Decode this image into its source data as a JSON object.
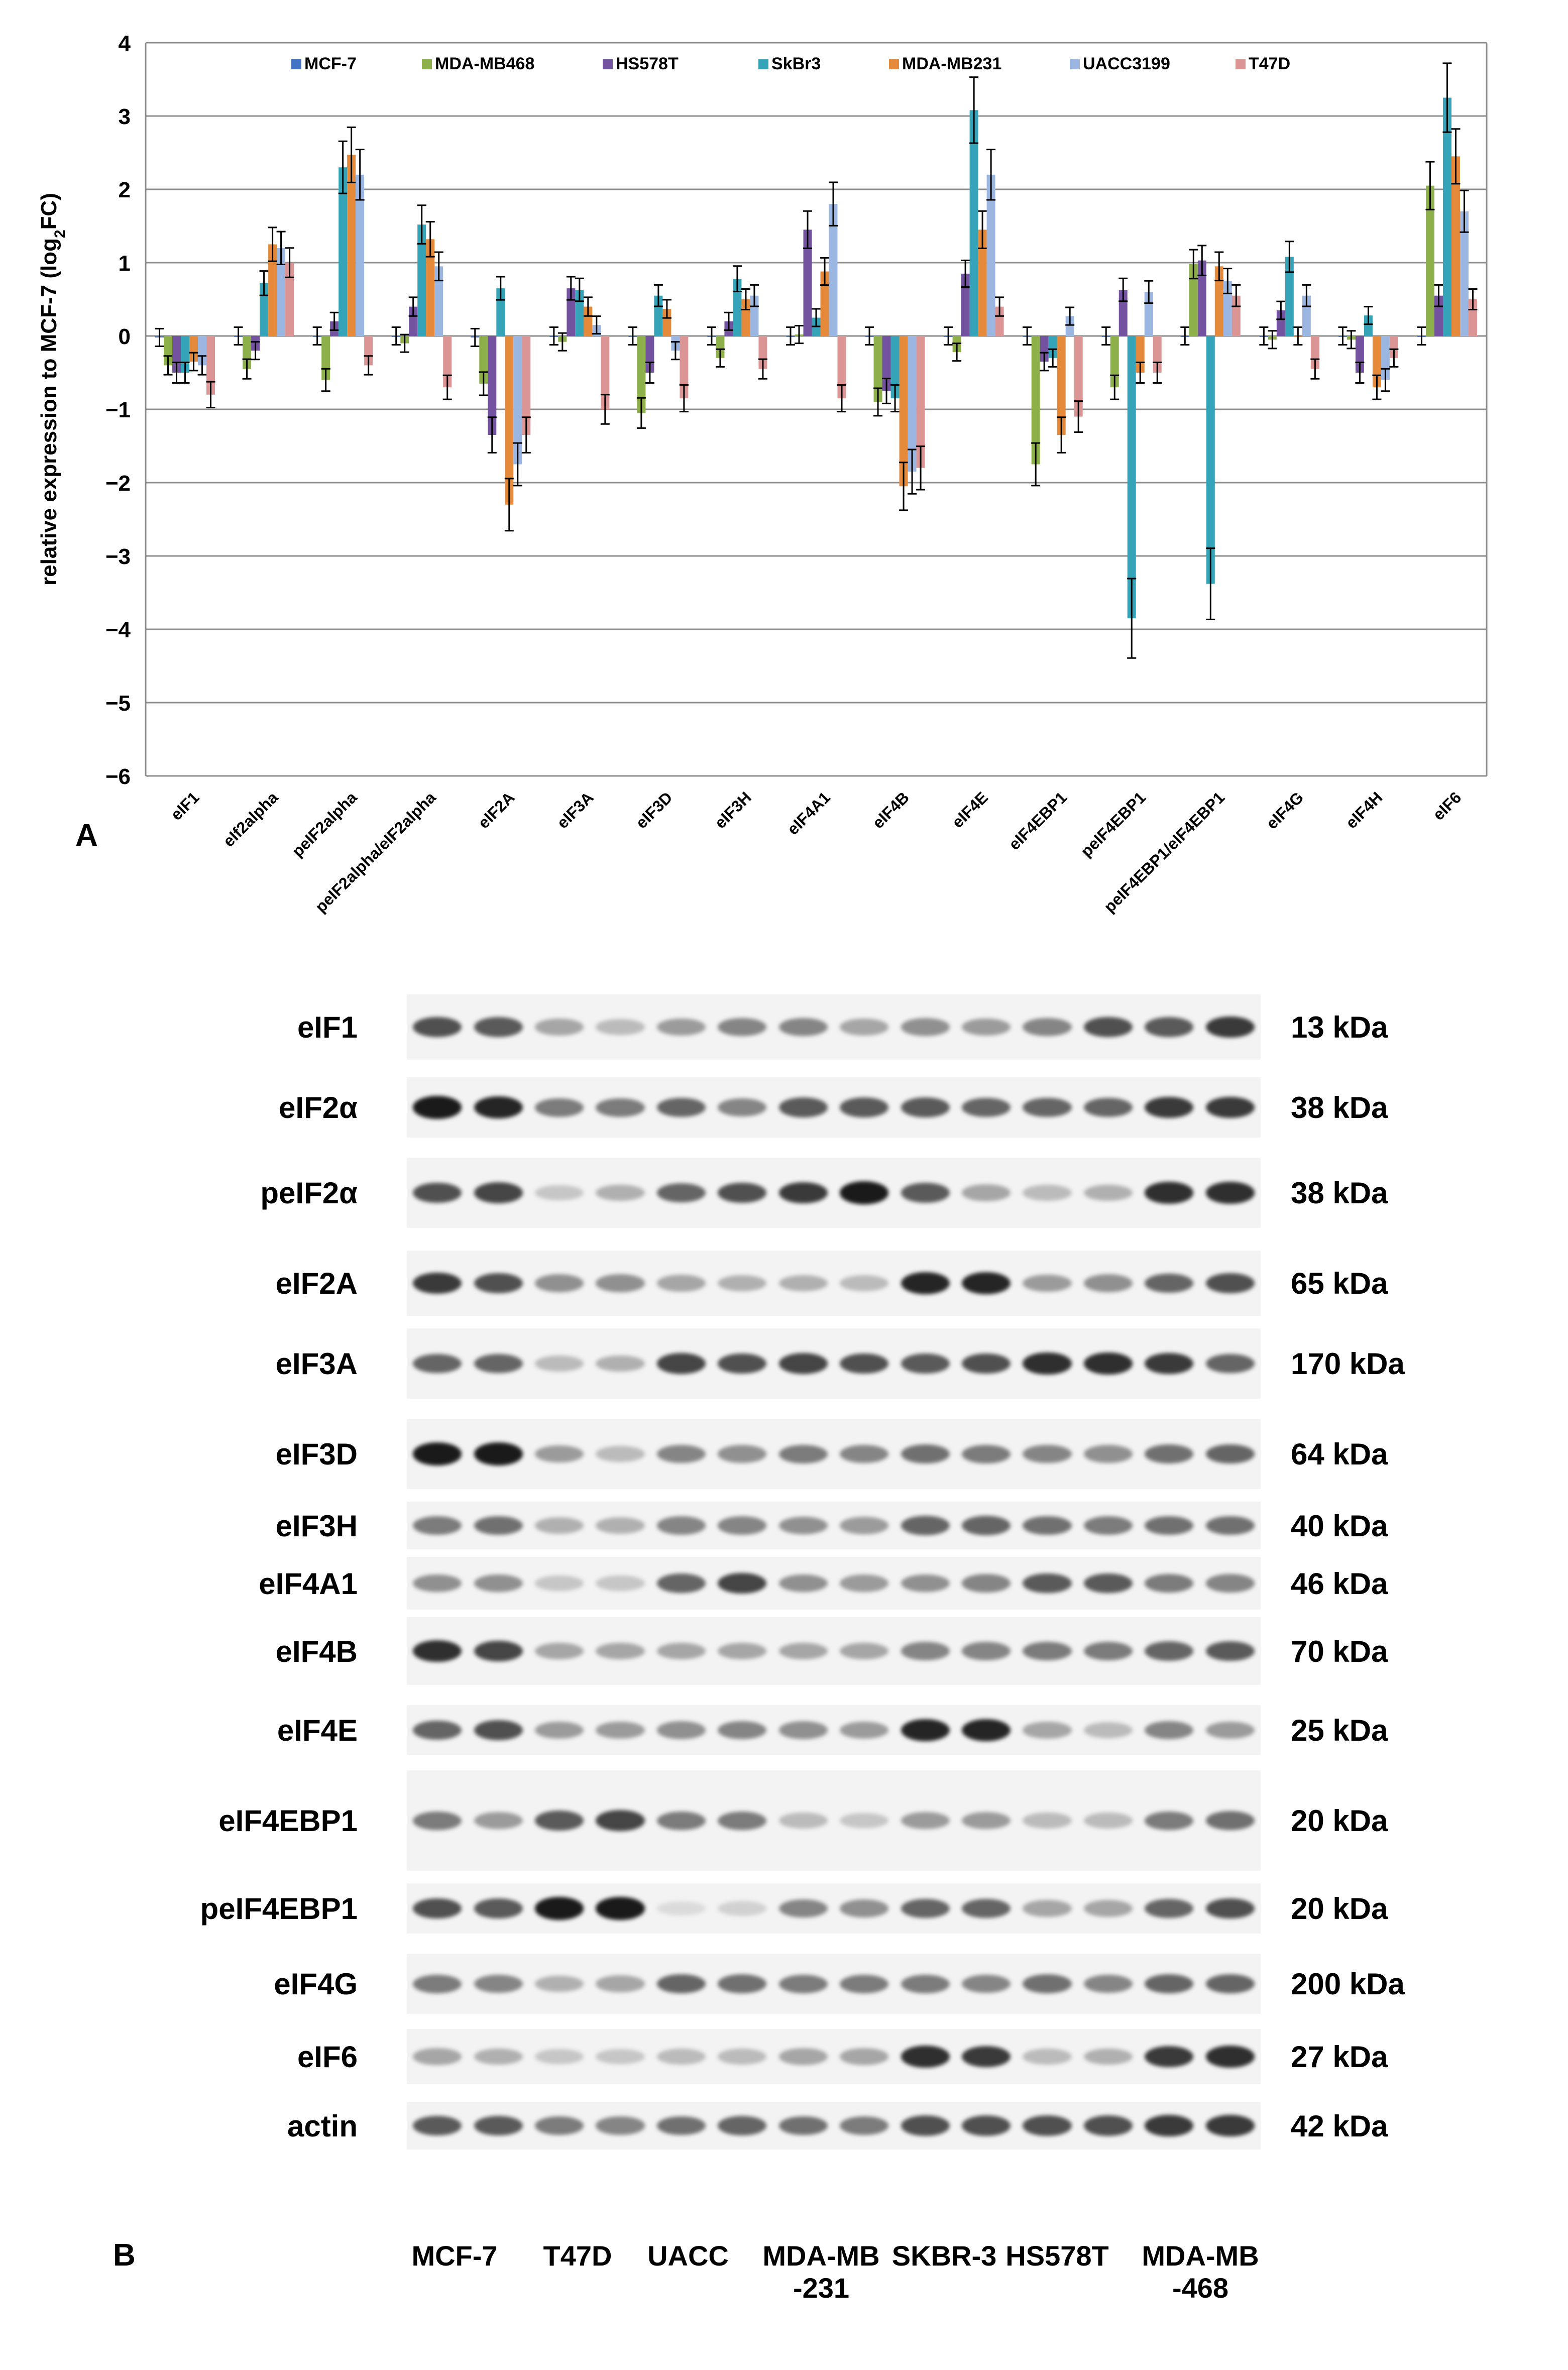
{
  "chart_data": {
    "type": "bar",
    "ylabel": "relative expression to MCF-7 (log",
    "ylabel_sub": "2",
    "ylabel_end": "FC)",
    "ylim": [
      -6,
      4
    ],
    "yticks": [
      "4",
      "3",
      "2",
      "1",
      "0",
      "−1",
      "−2",
      "−3",
      "−4",
      "−5",
      "−6"
    ],
    "grid": true,
    "legend_position": "top",
    "categories": [
      "eIF1",
      "eIf2alpha",
      "peIF2alpha",
      "peIF2alpha/eIF2alpha",
      "eIF2A",
      "eIF3A",
      "eIF3D",
      "eIF3H",
      "eIF4A1",
      "eIF4B",
      "eIF4E",
      "eIF4EBP1",
      "peIF4EBP1",
      "peIF4EBP1/eIF4EBP1",
      "eIF4G",
      "eIF4H",
      "eIF6"
    ],
    "series": [
      {
        "name": "MCF-7",
        "color": "#4472c4",
        "values": [
          -0.02,
          0.0,
          0.0,
          0.0,
          -0.02,
          0.0,
          0.0,
          0.0,
          0.0,
          0.0,
          0.0,
          0.0,
          0.0,
          0.0,
          0.0,
          0.0,
          0.0
        ]
      },
      {
        "name": "MDA-MB468",
        "color": "#8db04a",
        "values": [
          -0.4,
          -0.45,
          -0.6,
          -0.1,
          -0.65,
          -0.08,
          -1.05,
          -0.3,
          0.02,
          -0.9,
          -0.22,
          -1.75,
          -0.7,
          0.98,
          -0.05,
          -0.05,
          2.05
        ]
      },
      {
        "name": "HS578T",
        "color": "#7352a0",
        "values": [
          -0.5,
          -0.2,
          0.2,
          0.4,
          -1.35,
          0.65,
          -0.5,
          0.2,
          1.45,
          -0.75,
          0.85,
          -0.35,
          0.63,
          1.03,
          0.35,
          -0.5,
          0.55
        ]
      },
      {
        "name": "SkBr3",
        "color": "#36a4b8",
        "values": [
          -0.5,
          0.72,
          2.3,
          1.52,
          0.65,
          0.63,
          0.55,
          0.78,
          0.25,
          -0.85,
          3.08,
          -0.3,
          -3.85,
          -3.38,
          1.08,
          0.28,
          3.25
        ]
      },
      {
        "name": "MDA-MB231",
        "color": "#e5893a",
        "values": [
          -0.35,
          1.25,
          2.47,
          1.32,
          -2.3,
          0.4,
          0.37,
          0.5,
          0.88,
          -2.05,
          1.45,
          -1.35,
          -0.5,
          0.95,
          0.0,
          -0.7,
          2.45
        ]
      },
      {
        "name": "UACC3199",
        "color": "#9bb6e0",
        "values": [
          -0.4,
          1.2,
          2.2,
          0.95,
          -1.75,
          0.15,
          -0.2,
          0.55,
          1.8,
          -1.85,
          2.2,
          0.27,
          0.6,
          0.75,
          0.55,
          -0.6,
          1.7
        ]
      },
      {
        "name": "T47D",
        "color": "#dc9595",
        "values": [
          -0.8,
          1.0,
          -0.4,
          -0.7,
          -1.35,
          -1.0,
          -0.85,
          -0.45,
          -0.85,
          -1.8,
          0.4,
          -1.1,
          -0.5,
          0.55,
          -0.45,
          -0.3,
          0.5
        ]
      }
    ]
  },
  "panel_a_letter": "A",
  "panel_b_letter": "B",
  "blot": {
    "rows": [
      {
        "protein": "eIF1",
        "kda": "13 kDa",
        "bands": [
          0.7,
          0.65,
          0.3,
          0.2,
          0.35,
          0.45,
          0.45,
          0.3,
          0.4,
          0.35,
          0.45,
          0.7,
          0.65,
          0.8
        ]
      },
      {
        "protein": "eIF2α",
        "kda": "38 kDa",
        "bands": [
          0.95,
          0.9,
          0.5,
          0.5,
          0.6,
          0.45,
          0.65,
          0.65,
          0.65,
          0.6,
          0.6,
          0.6,
          0.8,
          0.8
        ]
      },
      {
        "protein": "peIF2α",
        "kda": "38 kDa",
        "bands": [
          0.7,
          0.75,
          0.15,
          0.25,
          0.6,
          0.7,
          0.8,
          0.95,
          0.65,
          0.3,
          0.2,
          0.25,
          0.85,
          0.85
        ]
      },
      {
        "protein": "eIF2A",
        "kda": "65 kDa",
        "bands": [
          0.8,
          0.7,
          0.4,
          0.4,
          0.3,
          0.25,
          0.25,
          0.2,
          0.9,
          0.9,
          0.35,
          0.4,
          0.6,
          0.7
        ]
      },
      {
        "protein": "eIF3A",
        "kda": "170 kDa",
        "bands": [
          0.6,
          0.6,
          0.2,
          0.25,
          0.75,
          0.7,
          0.75,
          0.7,
          0.65,
          0.7,
          0.85,
          0.85,
          0.8,
          0.6
        ]
      },
      {
        "protein": "eIF3D",
        "kda": "64 kDa",
        "bands": [
          0.95,
          0.95,
          0.35,
          0.2,
          0.45,
          0.4,
          0.5,
          0.45,
          0.55,
          0.5,
          0.45,
          0.4,
          0.55,
          0.6
        ]
      },
      {
        "protein": "eIF3H",
        "kda": "40 kDa",
        "bands": [
          0.5,
          0.55,
          0.25,
          0.25,
          0.45,
          0.45,
          0.4,
          0.35,
          0.6,
          0.6,
          0.55,
          0.5,
          0.55,
          0.55
        ]
      },
      {
        "protein": "eIF4A1",
        "kda": "46 kDa",
        "bands": [
          0.4,
          0.4,
          0.15,
          0.15,
          0.6,
          0.75,
          0.4,
          0.35,
          0.4,
          0.45,
          0.65,
          0.65,
          0.5,
          0.45
        ]
      },
      {
        "protein": "eIF4B",
        "kda": "70 kDa",
        "bands": [
          0.85,
          0.75,
          0.3,
          0.3,
          0.3,
          0.3,
          0.3,
          0.3,
          0.45,
          0.45,
          0.5,
          0.5,
          0.6,
          0.65
        ]
      },
      {
        "protein": "eIF4E",
        "kda": "25 kDa",
        "bands": [
          0.6,
          0.7,
          0.35,
          0.35,
          0.4,
          0.45,
          0.4,
          0.35,
          0.9,
          0.9,
          0.3,
          0.2,
          0.45,
          0.35
        ]
      },
      {
        "protein": "eIF4EBP1",
        "kda": "20 kDa",
        "bands": [
          0.5,
          0.35,
          0.65,
          0.75,
          0.5,
          0.5,
          0.2,
          0.15,
          0.35,
          0.35,
          0.2,
          0.2,
          0.5,
          0.55
        ]
      },
      {
        "protein": "peIF4EBP1",
        "kda": "20 kDa",
        "bands": [
          0.7,
          0.65,
          0.95,
          0.95,
          0.05,
          0.1,
          0.45,
          0.4,
          0.6,
          0.6,
          0.3,
          0.3,
          0.6,
          0.7
        ]
      },
      {
        "protein": "eIF4G",
        "kda": "200 kDa",
        "bands": [
          0.5,
          0.45,
          0.25,
          0.3,
          0.6,
          0.55,
          0.5,
          0.5,
          0.5,
          0.45,
          0.55,
          0.45,
          0.6,
          0.6
        ]
      },
      {
        "protein": "eIF6",
        "kda": "27 kDa",
        "bands": [
          0.3,
          0.25,
          0.15,
          0.15,
          0.2,
          0.2,
          0.3,
          0.3,
          0.85,
          0.8,
          0.2,
          0.25,
          0.8,
          0.85
        ]
      },
      {
        "protein": "actin",
        "kda": "42 kDa",
        "bands": [
          0.65,
          0.65,
          0.5,
          0.45,
          0.55,
          0.6,
          0.55,
          0.5,
          0.7,
          0.7,
          0.7,
          0.7,
          0.8,
          0.8
        ]
      }
    ],
    "cell_lines": [
      "MCF-7",
      "T47D",
      "UACC",
      "MDA-MB\n-231",
      "SKBR-3",
      "HS578T",
      "MDA-MB\n-468"
    ]
  }
}
